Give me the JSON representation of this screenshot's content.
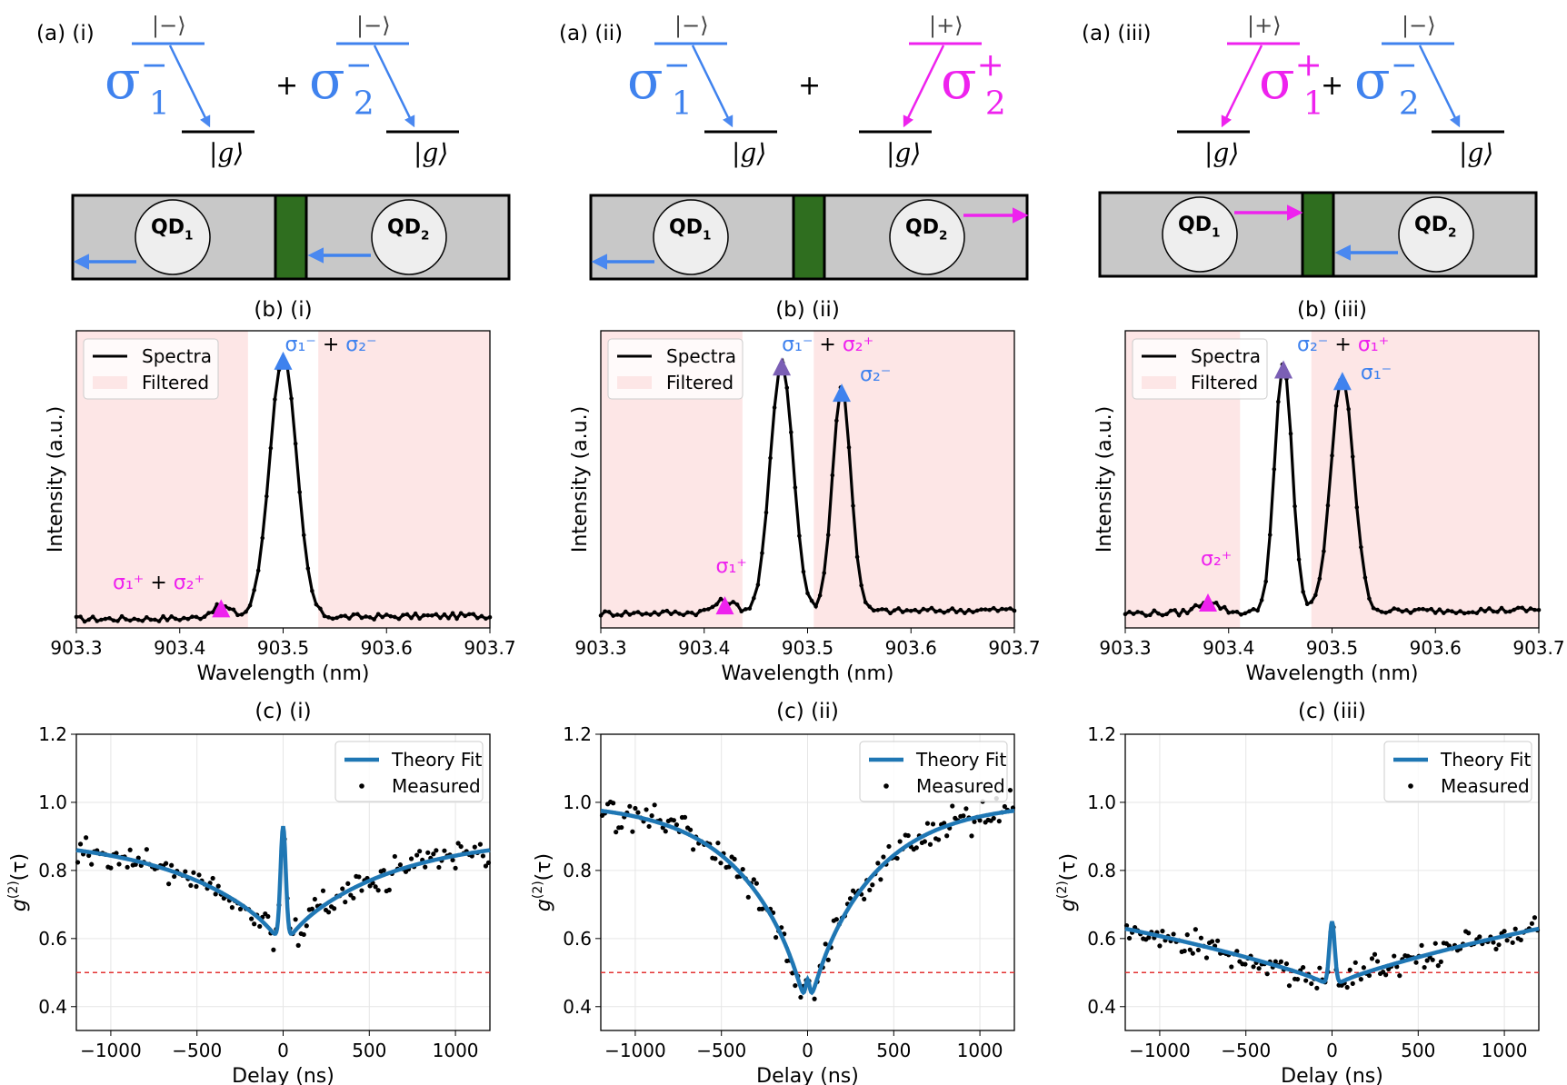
{
  "colors": {
    "blue": "#3f82ee",
    "magenta": "#ee22ee",
    "purple": "#7b5fb5",
    "fit": "#1f77b4",
    "filter": "#fde6e6",
    "green": "#2f6e1f",
    "arrowBlue": "#4a88f0",
    "ref": "#e33333"
  },
  "level_panels": [
    {
      "label": "(a) (i)",
      "left": {
        "excited": "|−⟩",
        "symbol": "σ",
        "sup": "−",
        "sub": "1",
        "color": "blue",
        "side": "left",
        "ground": "|g⟩"
      },
      "plus": "+",
      "right": {
        "excited": "|−⟩",
        "symbol": "σ",
        "sup": "−",
        "sub": "2",
        "color": "blue",
        "side": "left",
        "ground": "|g⟩"
      }
    },
    {
      "label": "(a) (ii)",
      "left": {
        "excited": "|−⟩",
        "symbol": "σ",
        "sup": "−",
        "sub": "1",
        "color": "blue",
        "side": "left",
        "ground": "|g⟩"
      },
      "plus": "+",
      "right": {
        "excited": "|+⟩",
        "symbol": "σ",
        "sup": "+",
        "sub": "2",
        "color": "magenta",
        "side": "right",
        "ground": "|g⟩"
      }
    },
    {
      "label": "(a) (iii)",
      "left": {
        "excited": "|+⟩",
        "symbol": "σ",
        "sup": "+",
        "sub": "1",
        "color": "magenta",
        "side": "right",
        "ground": "|g⟩"
      },
      "plus": "+",
      "right": {
        "excited": "|−⟩",
        "symbol": "σ",
        "sup": "−",
        "sub": "2",
        "color": "blue",
        "side": "left",
        "ground": "|g⟩"
      }
    }
  ],
  "devices": [
    {
      "qd1": "QD",
      "qd1_sub": "1",
      "qd2": "QD",
      "qd2_sub": "2",
      "qd1_emission": "left-out",
      "qd2_emission": "left-to-center"
    },
    {
      "qd1": "QD",
      "qd1_sub": "1",
      "qd2": "QD",
      "qd2_sub": "2",
      "qd1_emission": "left-out",
      "qd2_emission": "right-out"
    },
    {
      "qd1": "QD",
      "qd1_sub": "1",
      "qd2": "QD",
      "qd2_sub": "2",
      "qd1_emission": "right-to-center",
      "qd2_emission": "left-to-center"
    }
  ],
  "chart_data": [
    {
      "type": "line",
      "title": "(b) (i)",
      "xlabel": "Wavelength (nm)",
      "ylabel": "Intensity (a.u.)",
      "xlim": [
        903.3,
        903.7
      ],
      "ylim": [
        0,
        1.02
      ],
      "xticks": [
        903.3,
        903.4,
        903.5,
        903.6,
        903.7
      ],
      "xtick_labels": [
        "903.3",
        "903.4",
        "903.5",
        "903.6",
        "903.7"
      ],
      "legend": [
        "Spectra",
        "Filtered"
      ],
      "legend_position": "top-left",
      "series": [
        {
          "name": "Spectra",
          "peaks": [
            [
              903.5,
              0.93,
              0.013
            ]
          ],
          "baseline": 0.03,
          "shoulder": 903.44
        }
      ],
      "filtered_regions": [
        [
          903.3,
          903.466
        ],
        [
          903.534,
          903.7
        ]
      ],
      "markers": [
        {
          "x": 903.5,
          "y": 0.93,
          "color": "blue",
          "label": "σ₁⁻ + σ₂⁻"
        },
        {
          "x": 903.44,
          "y": 0.08,
          "color": "magenta",
          "label": "σ₁⁺ + σ₂⁺"
        }
      ]
    },
    {
      "type": "line",
      "title": "(b) (ii)",
      "xlabel": "Wavelength (nm)",
      "ylabel": "Intensity (a.u.)",
      "xlim": [
        903.3,
        903.7
      ],
      "ylim": [
        0,
        1.02
      ],
      "xticks": [
        903.3,
        903.4,
        903.5,
        903.6,
        903.7
      ],
      "xtick_labels": [
        "903.3",
        "903.4",
        "903.5",
        "903.6",
        "903.7"
      ],
      "legend": [
        "Spectra",
        "Filtered"
      ],
      "legend_position": "top-left",
      "series": [
        {
          "name": "Spectra",
          "peaks": [
            [
              903.475,
              0.91,
              0.011
            ],
            [
              903.533,
              0.82,
              0.009
            ]
          ],
          "baseline": 0.05,
          "shoulder": 903.42
        }
      ],
      "filtered_regions": [
        [
          903.3,
          903.437
        ],
        [
          903.506,
          903.7
        ]
      ],
      "markers": [
        {
          "x": 903.475,
          "y": 0.91,
          "color": "purple",
          "label": "σ₁⁻ + σ₂⁺"
        },
        {
          "x": 903.533,
          "y": 0.82,
          "color": "blue",
          "label": "σ₂⁻"
        },
        {
          "x": 903.42,
          "y": 0.09,
          "color": "magenta",
          "label": "σ₁⁺"
        }
      ]
    },
    {
      "type": "line",
      "title": "(b) (iii)",
      "xlabel": "Wavelength (nm)",
      "ylabel": "Intensity (a.u.)",
      "xlim": [
        903.3,
        903.7
      ],
      "ylim": [
        0,
        1.02
      ],
      "xticks": [
        903.3,
        903.4,
        903.5,
        903.6,
        903.7
      ],
      "xtick_labels": [
        "903.3",
        "903.4",
        "903.5",
        "903.6",
        "903.7"
      ],
      "legend": [
        "Spectra",
        "Filtered"
      ],
      "legend_position": "top-left",
      "series": [
        {
          "name": "Spectra",
          "peaks": [
            [
              903.453,
              0.9,
              0.0085
            ],
            [
              903.51,
              0.86,
              0.011
            ]
          ],
          "baseline": 0.05,
          "shoulder": 903.38
        }
      ],
      "filtered_regions": [
        [
          903.3,
          903.411
        ],
        [
          903.48,
          903.7
        ]
      ],
      "markers": [
        {
          "x": 903.453,
          "y": 0.9,
          "color": "purple",
          "label": "σ₂⁻ + σ₁⁺"
        },
        {
          "x": 903.51,
          "y": 0.86,
          "color": "blue",
          "label": "σ₁⁻"
        },
        {
          "x": 903.38,
          "y": 0.1,
          "color": "magenta",
          "label": "σ₂⁺"
        }
      ]
    },
    {
      "type": "line",
      "title": "(c) (i)",
      "xlabel": "Delay (ns)",
      "ylabel": "g(2)(τ)",
      "xlim": [
        -1200,
        1200
      ],
      "ylim": [
        0.33,
        1.2
      ],
      "xticks": [
        -1000,
        -500,
        0,
        500,
        1000
      ],
      "xtick_labels": [
        "−1000",
        "−500",
        "0",
        "500",
        "1000"
      ],
      "yticks": [
        0.4,
        0.6,
        0.8,
        1.0,
        1.2
      ],
      "ytick_labels": [
        "0.4",
        "0.6",
        "0.8",
        "1.0",
        "1.2"
      ],
      "legend": [
        "Theory Fit",
        "Measured"
      ],
      "legend_position": "top-right",
      "reference_line": 0.5,
      "fit": {
        "dip_value": 0.6,
        "tau_ns": 600,
        "floor": 0.9,
        "bunch_peak": 0.93,
        "bunch_width_ns": 22,
        "antibunch_width_ns": 45
      },
      "measured_noise": 0.035
    },
    {
      "type": "line",
      "title": "(c) (ii)",
      "xlabel": "Delay (ns)",
      "ylabel": "g(2)(τ)",
      "xlim": [
        -1200,
        1200
      ],
      "ylim": [
        0.33,
        1.2
      ],
      "xticks": [
        -1000,
        -500,
        0,
        500,
        1000
      ],
      "xtick_labels": [
        "−1000",
        "−500",
        "0",
        "500",
        "1000"
      ],
      "yticks": [
        0.4,
        0.6,
        0.8,
        1.0,
        1.2
      ],
      "ytick_labels": [
        "0.4",
        "0.6",
        "0.8",
        "1.0",
        "1.2"
      ],
      "legend": [
        "Theory Fit",
        "Measured"
      ],
      "legend_position": "top-right",
      "reference_line": 0.5,
      "fit": {
        "dip_value": 0.42,
        "tau_ns": 380,
        "floor": 1.0,
        "bunch_peak": 0.48,
        "bunch_width_ns": 18,
        "antibunch_width_ns": 35
      },
      "measured_noise": 0.04
    },
    {
      "type": "line",
      "title": "(c) (iii)",
      "xlabel": "Delay (ns)",
      "ylabel": "g(2)(τ)",
      "xlim": [
        -1200,
        1200
      ],
      "ylim": [
        0.33,
        1.2
      ],
      "xticks": [
        -1000,
        -500,
        0,
        500,
        1000
      ],
      "xtick_labels": [
        "−1000",
        "−500",
        "0",
        "500",
        "1000"
      ],
      "yticks": [
        0.4,
        0.6,
        0.8,
        1.0,
        1.2
      ],
      "ytick_labels": [
        "0.4",
        "0.6",
        "0.8",
        "1.0",
        "1.2"
      ],
      "legend": [
        "Theory Fit",
        "Measured"
      ],
      "legend_position": "top-right",
      "reference_line": 0.5,
      "fit": {
        "dip_value": 0.47,
        "tau_ns": 2600,
        "floor": 0.9,
        "bunch_peak": 0.65,
        "bunch_width_ns": 22,
        "antibunch_width_ns": 50
      },
      "measured_noise": 0.03
    }
  ]
}
